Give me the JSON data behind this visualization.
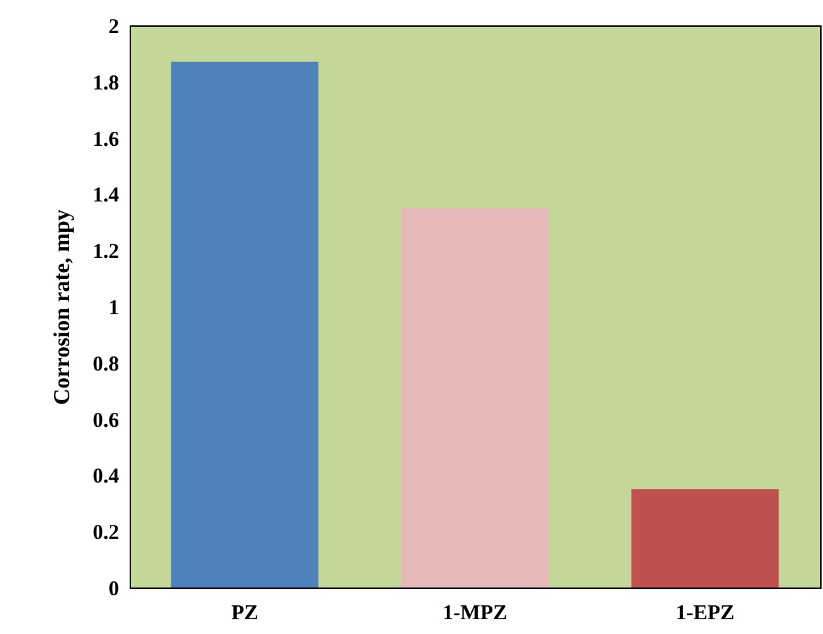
{
  "chart_data": {
    "type": "bar",
    "ylabel": "Corrosion rate, mpy",
    "categories": [
      "PZ",
      "1-MPZ",
      "1-EPZ"
    ],
    "values": [
      1.87,
      1.35,
      0.35
    ],
    "colors": [
      "#4f81bd",
      "#e6b9b8",
      "#c0504d"
    ],
    "ylim": [
      0,
      2
    ],
    "yticks": [
      0,
      0.2,
      0.4,
      0.6,
      0.8,
      1,
      1.2,
      1.4,
      1.6,
      1.8,
      2
    ],
    "grid": false
  }
}
